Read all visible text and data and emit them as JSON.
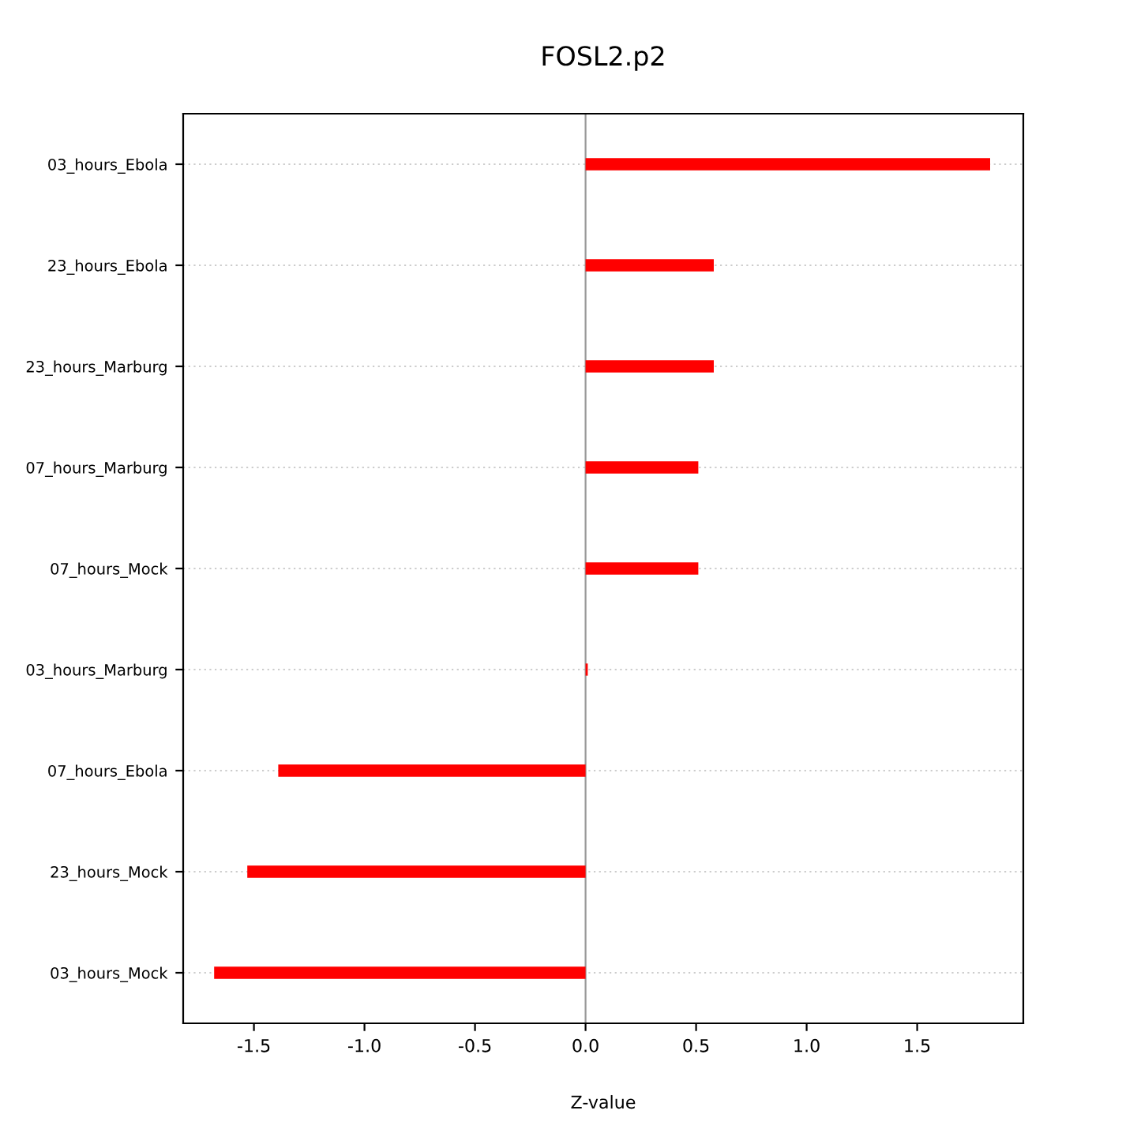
{
  "chart_data": {
    "type": "bar",
    "orientation": "horizontal",
    "title": "FOSL2.p2",
    "xlabel": "Z-value",
    "categories": [
      "03_hours_Ebola",
      "23_hours_Ebola",
      "23_hours_Marburg",
      "07_hours_Marburg",
      "07_hours_Mock",
      "03_hours_Marburg",
      "07_hours_Ebola",
      "23_hours_Mock",
      "03_hours_Mock"
    ],
    "values": [
      1.83,
      0.58,
      0.58,
      0.51,
      0.51,
      0.01,
      -1.39,
      -1.53,
      -1.68
    ],
    "color": "#ff0000",
    "xlim": [
      -1.82,
      1.98
    ],
    "xticks": [
      -1.5,
      {
        "value": -1,
        "label": "-1.0"
      },
      -0.5,
      {
        "value": 0,
        "label": "0.0"
      },
      0.5,
      {
        "value": 1,
        "label": "1.0"
      },
      1.5
    ],
    "ref_lines": [
      {
        "axis": "x",
        "value": 0,
        "color": "#999999"
      }
    ],
    "grid": "y"
  }
}
